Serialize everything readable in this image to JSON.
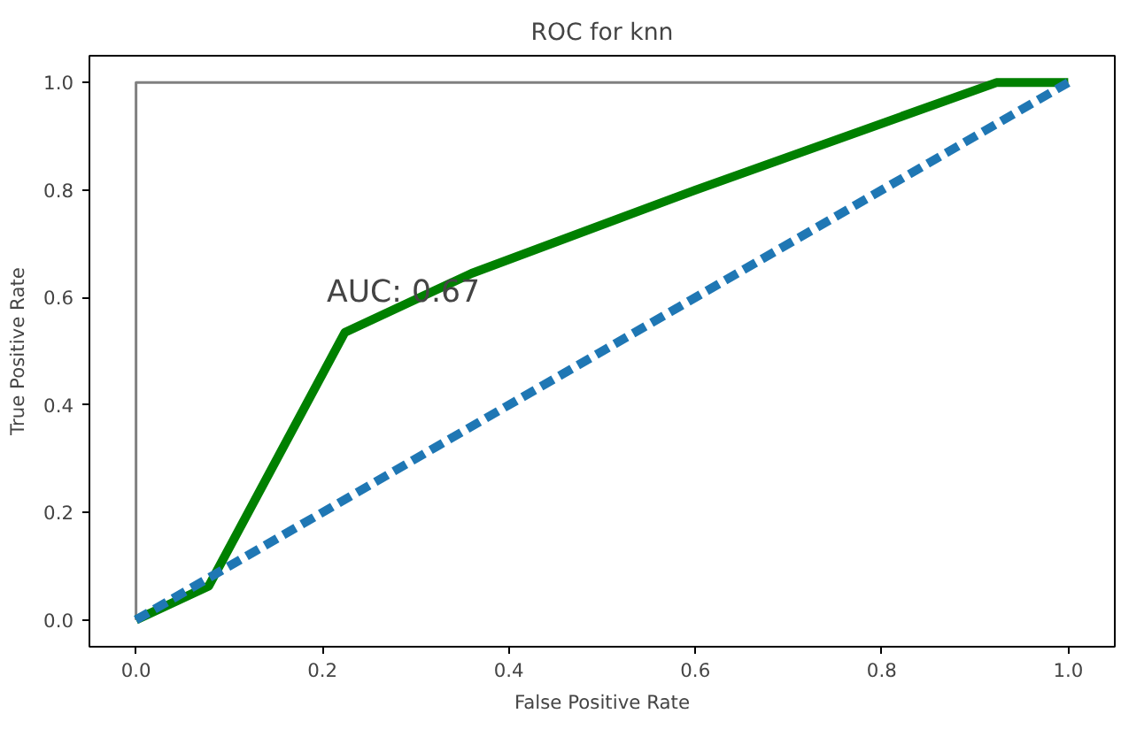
{
  "chart_data": {
    "type": "line",
    "title": "ROC for knn",
    "xlabel": "False Positive Rate",
    "ylabel": "True Positive Rate",
    "xlim": [
      -0.05,
      1.05
    ],
    "ylim": [
      -0.05,
      1.05
    ],
    "xticks": [
      {
        "value": 0,
        "label": "0.0"
      },
      {
        "value": 0.2,
        "label": "0.2"
      },
      {
        "value": 0.4,
        "label": "0.4"
      },
      {
        "value": 0.6,
        "label": "0.6"
      },
      {
        "value": 0.8,
        "label": "0.8"
      },
      {
        "value": 1,
        "label": "1.0"
      }
    ],
    "yticks": [
      {
        "value": 0,
        "label": "0.0"
      },
      {
        "value": 0.2,
        "label": "0.2"
      },
      {
        "value": 0.4,
        "label": "0.4"
      },
      {
        "value": 0.6,
        "label": "0.6"
      },
      {
        "value": 0.8,
        "label": "0.8"
      },
      {
        "value": 1,
        "label": "1.0"
      }
    ],
    "grid": false,
    "series": [
      {
        "color": "#808080",
        "x": [
          0,
          0,
          1
        ],
        "values": [
          0,
          1,
          1
        ],
        "line_style": "solid"
      },
      {
        "color": "#008000",
        "x": [
          0,
          0.078,
          0.224,
          0.36,
          0.6,
          0.923,
          1
        ],
        "values": [
          0,
          0.063,
          0.535,
          0.645,
          0.8,
          1,
          1
        ],
        "line_style": "solid"
      },
      {
        "color": "#1f77b4",
        "x": [
          0,
          1
        ],
        "values": [
          0,
          1
        ],
        "line_style": "dashed"
      }
    ],
    "annotations": [
      "AUC: 0.67"
    ]
  }
}
